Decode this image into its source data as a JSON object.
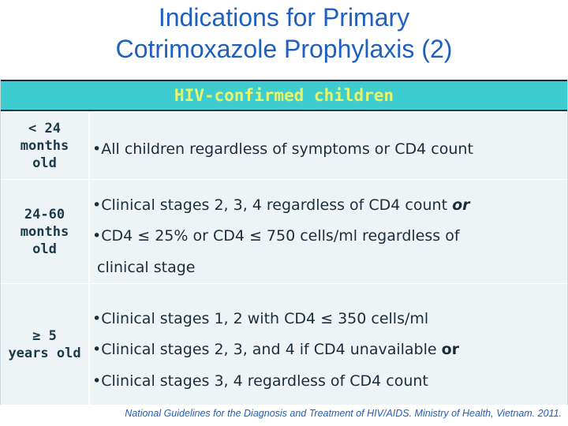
{
  "title": {
    "line1": "Indications for Primary",
    "line2": "Cotrimoxazole Prophylaxis (2)"
  },
  "table": {
    "header": "HIV-confirmed children",
    "rows": [
      {
        "age": [
          "< 24",
          "months",
          "old"
        ],
        "criteria": [
          {
            "bullet": "•",
            "text": "All children regardless of symptoms or CD4 count",
            "suffix": ""
          }
        ]
      },
      {
        "age": [
          "24-60",
          "months",
          "old"
        ],
        "criteria": [
          {
            "bullet": "•",
            "text": "Clinical stages 2, 3, 4 regardless of CD4 count ",
            "suffix": "or"
          },
          {
            "bullet": "•",
            "text": "CD4 ≤ 25% or CD4 ≤ 750 cells/ml regardless of",
            "suffix": ""
          },
          {
            "bullet": "",
            "text": "clinical stage",
            "suffix": ""
          }
        ]
      },
      {
        "age": [
          "≥ 5",
          "years old"
        ],
        "criteria": [
          {
            "bullet": "•",
            "text": "Clinical stages 1, 2 with CD4 ≤ 350 cells/ml",
            "suffix": ""
          },
          {
            "bullet": "•",
            "text": "Clinical stages 2, 3, and 4 if CD4 unavailable ",
            "suffix": "or"
          },
          {
            "bullet": "•",
            "text": "Clinical stages 3, 4 regardless of CD4 count",
            "suffix": ""
          }
        ]
      }
    ]
  },
  "footer": "National Guidelines for the Diagnosis and Treatment of HIV/AIDS.  Ministry of Health, Vietnam.  2011.",
  "colors": {
    "title": "#1f5fbf",
    "header_bg": "#3dcdd0",
    "header_text": "#e7f56a",
    "row_bg": "#eef4f5"
  }
}
